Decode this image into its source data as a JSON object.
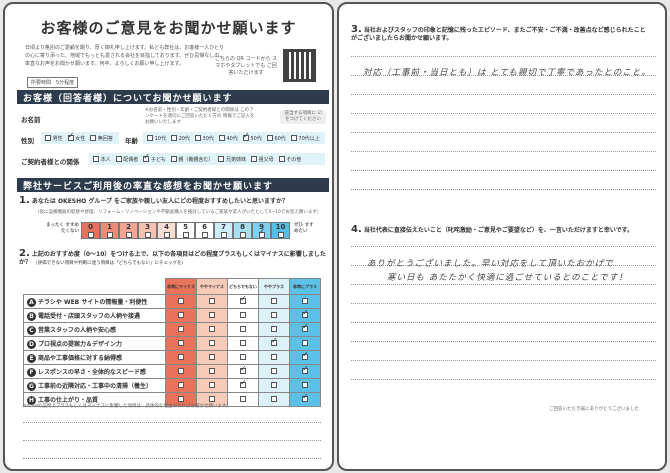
{
  "left": {
    "title": "お客様のご意見をお聞かせ願います",
    "intro": "日頃より格別のご愛顧を賜り、厚く御礼申し上げます。私ども弊社は、お客様一人ひとりの心に寄り添った、地域でもっとも愛される会社を目指しております。ぜひ忌憚なしの、率直なお声をお聞かせ願います。何卒、よろしくお願い申し上げます。",
    "time": "所要時間　5分程度",
    "qr_text": "こちらの QR コードから スマホやタブレットでも ご回答いただけます",
    "section1": "お客様（回答者様）についてお聞かせ願います",
    "name_label": "お名前",
    "name_note": "※お名前・性別・年齢・ご契約者様との関係は このアンケートを適切にご回答いただく方の 情報でご記入をお願いいたします",
    "check_note": "該当する項目に ☑をつけてください",
    "gender_label": "性別",
    "gender": [
      {
        "t": "男性",
        "on": false
      },
      {
        "t": "女性",
        "on": true
      },
      {
        "t": "無回答",
        "on": false
      }
    ],
    "age_label": "年齢",
    "age": [
      {
        "t": "10代",
        "on": false
      },
      {
        "t": "20代",
        "on": false
      },
      {
        "t": "30代",
        "on": false
      },
      {
        "t": "40代",
        "on": false
      },
      {
        "t": "50代",
        "on": true
      },
      {
        "t": "60代",
        "on": false
      },
      {
        "t": "70代以上",
        "on": false
      }
    ],
    "rel_label": "ご契約者様との関係",
    "rel": [
      {
        "t": "本人",
        "on": false
      },
      {
        "t": "配偶者",
        "on": false
      },
      {
        "t": "子ども",
        "on": true
      },
      {
        "t": "親（義親含む）",
        "on": false
      },
      {
        "t": "兄弟姉妹",
        "on": false
      },
      {
        "t": "祖父母",
        "on": false
      },
      {
        "t": "その他",
        "on": false
      }
    ],
    "section2": "弊社サービスご利用後の率直な感想をお聞かせ願います",
    "q1": "あなたは OKESHO グループ をご家族や親しい友人にどの程度おすすめしたいと思いますか？",
    "q1_num": "1.",
    "q1_note": "（仮に設備機器の取替や修理、リフォーム・リノベーションや不動産購入を検討しているご家族や友人がいたとして0~10でお答え願います）",
    "scale_low": "まったく すすめたくない",
    "scale_high": "ぜひ すすめたい",
    "scale": [
      "0",
      "1",
      "2",
      "3",
      "4",
      "5",
      "6",
      "7",
      "8",
      "9",
      "10"
    ],
    "scale_selected": 9,
    "scale_colors": [
      "#e9705a",
      "#ee8b78",
      "#f2a593",
      "#f6c1b2",
      "#fadcd2",
      "#ffffff",
      "#ffffff",
      "#cdeef8",
      "#a8e0f3",
      "#7fcfee",
      "#55bde6"
    ],
    "q2_num": "2.",
    "q2": "上記のおすすめ度（0〜10）をつける上で、以下の各項目はどの程度プラスもしくはマイナスに影響しましたか？",
    "q2_note": "（評価できない項目や判断に迷う項目は「どちらでもない」にチェックを）",
    "columns": [
      "非常にマイナス",
      "ややマイナス",
      "どちらでもない",
      "ややプラス",
      "非常にプラス"
    ],
    "column_colors": [
      "#e8735a",
      "#f8cbb8",
      "#ffffff",
      "#dcf1f8",
      "#5cc1e8"
    ],
    "rows": [
      {
        "k": "A",
        "t": "チラシや WEB サイトの情報量・利便性",
        "c": [
          2
        ]
      },
      {
        "k": "B",
        "t": "電話受付・店頭スタッフの人柄や接遇",
        "c": [
          4
        ]
      },
      {
        "k": "C",
        "t": "営業スタッフの人柄や安心感",
        "c": [
          4
        ]
      },
      {
        "k": "D",
        "t": "プロ視点の提案力＆デザイン力",
        "c": [
          3
        ]
      },
      {
        "k": "E",
        "t": "商品や工事価格に対する納得感",
        "c": [
          4
        ]
      },
      {
        "k": "F",
        "t": "レスポンスの早さ・全体的なスピード感",
        "c": [
          2,
          4
        ]
      },
      {
        "k": "G",
        "t": "工事前の近隣対応・工事中の清掃（養生）",
        "c": [
          2
        ]
      },
      {
        "k": "H",
        "t": "工事の仕上がり・品質",
        "c": [
          4
        ]
      }
    ],
    "footnote": "※A〜Hの設問でプラスもしくはマイナスに影響した項目は、具体的な理由があればお聞かせ願います。"
  },
  "right": {
    "q3_num": "3.",
    "q3": "当社およびスタッフの印象と記憶に残ったエピソード、またご不安・ご不満・改善点など感じられたことがございましたらお聞かせ願います。",
    "q3_answer": "対応（工事前・当日とも）は とても親切で丁寧であったとのこと。",
    "q4_num": "4.",
    "q4": "当社代表に直接伝えたいこと（叱咤激励・ご意見やご要望など）を、一言いただけますと幸いです。",
    "q4_answer": [
      "ありがとうございました。早い対応をして頂いたおかげで",
      "寒い日も あたたかく快適に過ごせているとのことです！"
    ],
    "thanks": "ご回答いただき誠にありがとうございました"
  }
}
